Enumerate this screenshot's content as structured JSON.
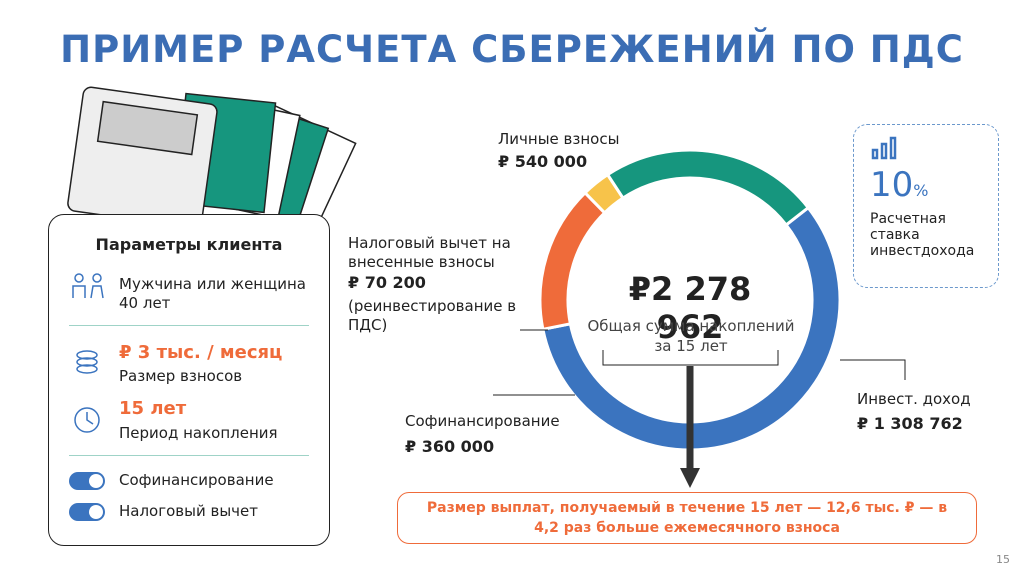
{
  "title": "ПРИМЕР РАСЧЕТА СБЕРЕЖЕНИЙ ПО ПДС",
  "client_params": {
    "heading": "Параметры клиента",
    "client": "Мужчина или женщина 40 лет",
    "contribution": {
      "value": "₽ 3 тыс. / месяц",
      "caption": "Размер взносов"
    },
    "period": {
      "value": "15 лет",
      "caption": "Период накопления"
    },
    "toggles": [
      "Софинансирование",
      "Налоговый вычет"
    ]
  },
  "chart_data": {
    "type": "donut",
    "categories": [
      "Инвест. доход",
      "Софинансирование",
      "Налоговый вычет на внесенные взносы",
      "Личные взносы"
    ],
    "values": [
      1308762,
      360000,
      70200,
      540000
    ],
    "value_labels": [
      "₽ 1 308 762",
      "₽ 360 000",
      "₽ 70 200",
      "₽ 540 000"
    ],
    "colors": [
      "#3b74bf",
      "#ef6b3a",
      "#f7c34a",
      "#16967e"
    ],
    "annotation": "(реинвестирование в ПДС)",
    "center_value": "₽2 278 962",
    "center_caption": "Общая сумма накоплений за 15 лет"
  },
  "rate": {
    "value": "10",
    "unit": "%",
    "caption": "Расчетная ставка инвестдохода"
  },
  "note": "Размер выплат, получаемый в течение 15 лет — 12,6 тыс. ₽ — в 4,2 раз больше ежемесячного взноса",
  "page_number": "15"
}
